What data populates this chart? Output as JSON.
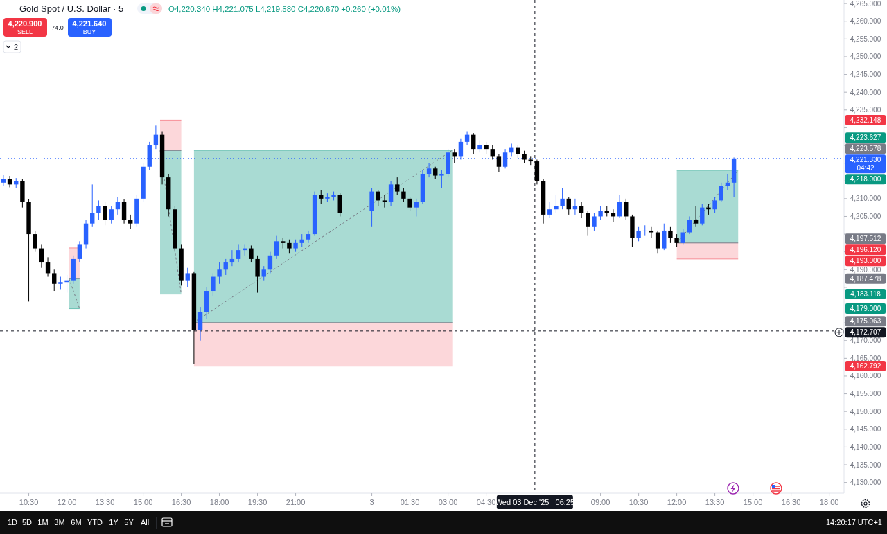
{
  "chart_data": {
    "type": "candlestick",
    "title": "Gold Spot / U.S. Dollar · 5",
    "subtitle": "O4,220.340 H4,221.075 L4,219.580 C4,220.670 +0.260 (+0.01%)",
    "x": [
      "2025-12-02T09:30",
      "2025-12-02T09:45",
      "2025-12-02T10:00",
      "2025-12-02T10:15",
      "2025-12-02T10:30",
      "2025-12-02T10:45",
      "2025-12-02T11:00",
      "2025-12-02T11:15",
      "2025-12-02T11:30",
      "2025-12-02T11:45",
      "2025-12-02T12:00",
      "2025-12-02T12:15",
      "2025-12-02T12:30",
      "2025-12-02T12:45",
      "2025-12-02T13:00",
      "2025-12-02T13:15",
      "2025-12-02T13:30",
      "2025-12-02T13:45",
      "2025-12-02T14:00",
      "2025-12-02T14:15",
      "2025-12-02T14:30",
      "2025-12-02T14:45",
      "2025-12-02T15:00",
      "2025-12-02T15:15",
      "2025-12-02T15:30",
      "2025-12-02T15:45",
      "2025-12-02T16:00",
      "2025-12-02T16:15",
      "2025-12-02T16:30",
      "2025-12-02T16:45",
      "2025-12-02T17:00",
      "2025-12-02T17:15",
      "2025-12-02T17:30",
      "2025-12-02T17:45",
      "2025-12-02T18:00",
      "2025-12-02T18:15",
      "2025-12-02T18:30",
      "2025-12-02T18:45",
      "2025-12-02T19:00",
      "2025-12-02T19:15",
      "2025-12-02T19:30",
      "2025-12-02T19:45",
      "2025-12-02T20:00",
      "2025-12-02T20:15",
      "2025-12-02T20:30",
      "2025-12-02T20:45",
      "2025-12-02T21:00",
      "2025-12-02T21:15",
      "2025-12-02T21:30",
      "2025-12-02T21:45",
      "2025-12-02T22:00",
      "2025-12-02T22:15",
      "2025-12-02T22:30",
      "2025-12-02T22:45",
      "2025-12-03T00:00",
      "2025-12-03T00:15",
      "2025-12-03T00:30",
      "2025-12-03T00:45",
      "2025-12-03T01:00",
      "2025-12-03T01:15",
      "2025-12-03T01:30",
      "2025-12-03T01:45",
      "2025-12-03T02:00",
      "2025-12-03T02:15",
      "2025-12-03T02:30",
      "2025-12-03T02:45",
      "2025-12-03T03:00",
      "2025-12-03T03:15",
      "2025-12-03T03:30",
      "2025-12-03T03:45",
      "2025-12-03T04:00",
      "2025-12-03T04:15",
      "2025-12-03T04:30",
      "2025-12-03T04:45",
      "2025-12-03T05:00",
      "2025-12-03T05:15",
      "2025-12-03T05:30",
      "2025-12-03T05:45",
      "2025-12-03T06:00",
      "2025-12-03T06:15",
      "2025-12-03T06:30",
      "2025-12-03T06:45",
      "2025-12-03T07:00",
      "2025-12-03T07:15",
      "2025-12-03T07:30",
      "2025-12-03T07:45",
      "2025-12-03T08:00",
      "2025-12-03T08:15",
      "2025-12-03T08:30",
      "2025-12-03T08:45",
      "2025-12-03T09:00",
      "2025-12-03T09:15",
      "2025-12-03T09:30",
      "2025-12-03T09:45",
      "2025-12-03T10:00",
      "2025-12-03T10:15",
      "2025-12-03T10:30",
      "2025-12-03T10:45",
      "2025-12-03T11:00",
      "2025-12-03T11:15",
      "2025-12-03T11:30",
      "2025-12-03T11:45",
      "2025-12-03T12:00",
      "2025-12-03T12:15",
      "2025-12-03T12:30",
      "2025-12-03T12:45",
      "2025-12-03T13:00",
      "2025-12-03T13:15",
      "2025-12-03T13:30",
      "2025-12-03T13:45",
      "2025-12-03T14:00",
      "2025-12-03T14:15"
    ],
    "ohlc": [
      [
        4214.5,
        4216.8,
        4213.6,
        4215.5
      ],
      [
        4215.5,
        4216.4,
        4213.2,
        4214
      ],
      [
        4214,
        4215.8,
        4212.9,
        4215
      ],
      [
        4215,
        4215.6,
        4207.5,
        4209
      ],
      [
        4209,
        4209.8,
        4181,
        4200
      ],
      [
        4200,
        4201,
        4195,
        4196
      ],
      [
        4196,
        4197,
        4190.5,
        4192
      ],
      [
        4192,
        4193.5,
        4188,
        4189
      ],
      [
        4189,
        4190,
        4184,
        4186
      ],
      [
        4186,
        4188,
        4184.5,
        4186.5
      ],
      [
        4186.5,
        4188.5,
        4183.5,
        4187
      ],
      [
        4187,
        4194,
        4186,
        4193
      ],
      [
        4193,
        4198,
        4192,
        4197
      ],
      [
        4197,
        4204,
        4196,
        4203
      ],
      [
        4203,
        4214,
        4202,
        4206
      ],
      [
        4206,
        4209.5,
        4204,
        4208
      ],
      [
        4208,
        4209,
        4202.5,
        4204
      ],
      [
        4204,
        4208,
        4203,
        4207
      ],
      [
        4207,
        4210.5,
        4205.5,
        4209
      ],
      [
        4209,
        4209.8,
        4203,
        4204
      ],
      [
        4204,
        4205.5,
        4201.5,
        4203
      ],
      [
        4203,
        4211,
        4202,
        4210
      ],
      [
        4210,
        4220,
        4209,
        4219
      ],
      [
        4219,
        4226,
        4218,
        4225
      ],
      [
        4225,
        4230.6,
        4224,
        4228
      ],
      [
        4228,
        4229,
        4214,
        4216
      ],
      [
        4216,
        4217,
        4205,
        4207
      ],
      [
        4207,
        4208,
        4195,
        4196
      ],
      [
        4196,
        4197,
        4185.5,
        4187
      ],
      [
        4187,
        4190.5,
        4185,
        4189
      ],
      [
        4189,
        4189.5,
        4163.5,
        4173
      ],
      [
        4173,
        4179.5,
        4170,
        4178
      ],
      [
        4178,
        4185,
        4176,
        4184
      ],
      [
        4184,
        4189,
        4182.5,
        4188
      ],
      [
        4188,
        4192,
        4186,
        4190
      ],
      [
        4190,
        4193,
        4188.5,
        4192
      ],
      [
        4192,
        4195.5,
        4191,
        4193
      ],
      [
        4193,
        4197,
        4192,
        4195.5
      ],
      [
        4195.5,
        4197,
        4194,
        4196
      ],
      [
        4196,
        4196.8,
        4192,
        4193
      ],
      [
        4193,
        4194,
        4183.5,
        4188
      ],
      [
        4188,
        4191,
        4187,
        4190
      ],
      [
        4190,
        4195,
        4189,
        4194
      ],
      [
        4194,
        4199.5,
        4193,
        4198
      ],
      [
        4198,
        4199,
        4196,
        4197.5
      ],
      [
        4197.5,
        4198.5,
        4194.5,
        4196
      ],
      [
        4196,
        4198.5,
        4195,
        4197.5
      ],
      [
        4197.5,
        4200,
        4196.5,
        4198.5
      ],
      [
        4198.5,
        4201,
        4197.5,
        4200
      ],
      [
        4200,
        4212,
        4199.5,
        4211
      ],
      [
        4211,
        4212.5,
        4208.5,
        4210
      ],
      [
        4210,
        4211.5,
        4209,
        4210.5
      ],
      [
        4210.5,
        4212,
        4209.5,
        4211
      ],
      [
        4211,
        4211.5,
        4205,
        4206
      ],
      [
        4206.5,
        4213,
        4202,
        4212
      ],
      [
        4212,
        4212.5,
        4208,
        4209.5
      ],
      [
        4209.5,
        4211,
        4207.5,
        4209
      ],
      [
        4209,
        4215,
        4208,
        4214
      ],
      [
        4214,
        4216,
        4211,
        4212
      ],
      [
        4212,
        4213,
        4209,
        4210
      ],
      [
        4210,
        4210.5,
        4206.5,
        4207.5
      ],
      [
        4207.5,
        4210,
        4205,
        4209
      ],
      [
        4209,
        4218,
        4208.5,
        4217
      ],
      [
        4217,
        4220,
        4216,
        4218.5
      ],
      [
        4218.5,
        4219,
        4215.5,
        4216.5
      ],
      [
        4216.5,
        4218,
        4213,
        4217
      ],
      [
        4217,
        4224,
        4216,
        4223
      ],
      [
        4223,
        4224,
        4220,
        4222
      ],
      [
        4222,
        4227,
        4221,
        4226
      ],
      [
        4226,
        4229,
        4225,
        4228
      ],
      [
        4228,
        4228.5,
        4222.5,
        4224
      ],
      [
        4224,
        4226.5,
        4223,
        4225
      ],
      [
        4225,
        4226,
        4222.5,
        4224
      ],
      [
        4224,
        4225,
        4221,
        4222
      ],
      [
        4222,
        4222.5,
        4217.5,
        4219
      ],
      [
        4219,
        4224,
        4218.5,
        4223
      ],
      [
        4223,
        4225.5,
        4222,
        4224.5
      ],
      [
        4224.5,
        4225,
        4221.5,
        4222.5
      ],
      [
        4222.5,
        4223.5,
        4220,
        4221
      ],
      [
        4221,
        4222,
        4219.5,
        4220.5
      ],
      [
        4220.5,
        4221,
        4214,
        4215
      ],
      [
        4215,
        4215.5,
        4203,
        4205.5
      ],
      [
        4205.5,
        4209,
        4204.5,
        4207
      ],
      [
        4207,
        4211,
        4206,
        4208
      ],
      [
        4208,
        4213,
        4207,
        4210
      ],
      [
        4210,
        4210.5,
        4205.5,
        4207
      ],
      [
        4207,
        4210,
        4205.5,
        4208
      ],
      [
        4208,
        4209,
        4204.5,
        4206
      ],
      [
        4206,
        4206.5,
        4199.5,
        4202
      ],
      [
        4202,
        4206,
        4201,
        4205
      ],
      [
        4205,
        4208,
        4204,
        4206.5
      ],
      [
        4206.5,
        4208,
        4205,
        4206
      ],
      [
        4206,
        4207,
        4203.5,
        4205
      ],
      [
        4205,
        4211,
        4204.5,
        4209
      ],
      [
        4209,
        4210,
        4204,
        4205
      ],
      [
        4205,
        4205.5,
        4196.5,
        4199
      ],
      [
        4199,
        4202,
        4198,
        4201
      ],
      [
        4201,
        4202.5,
        4199.5,
        4201
      ],
      [
        4201,
        4202,
        4199,
        4200.5
      ],
      [
        4200.5,
        4201,
        4194.5,
        4196
      ],
      [
        4196,
        4203,
        4195.5,
        4201
      ],
      [
        4201,
        4202,
        4197.5,
        4199
      ],
      [
        4199,
        4200,
        4196.5,
        4197.5
      ],
      [
        4197.5,
        4201.5,
        4197,
        4200.5
      ],
      [
        4200.5,
        4205,
        4200,
        4204
      ],
      [
        4204,
        4208,
        4202,
        4203
      ],
      [
        4203,
        4208.5,
        4202.5,
        4207.5
      ],
      [
        4207.5,
        4208.5,
        4205.5,
        4207
      ],
      [
        4207,
        4210.5,
        4206,
        4209.5
      ],
      [
        4209.5,
        4214.5,
        4209,
        4213.5
      ],
      [
        4213.5,
        4217,
        4212.5,
        4214.5
      ],
      [
        4214.5,
        4221.6,
        4210.5,
        4221.33
      ]
    ],
    "xlim": [
      "2025-12-02T09:22",
      "2025-12-03T18:35"
    ],
    "xticks": [
      {
        "value": "2025-12-02T10:30",
        "label": "10:30"
      },
      {
        "value": "2025-12-02T12:00",
        "label": "12:00"
      },
      {
        "value": "2025-12-02T13:30",
        "label": "13:30"
      },
      {
        "value": "2025-12-02T15:00",
        "label": "15:00"
      },
      {
        "value": "2025-12-02T16:30",
        "label": "16:30"
      },
      {
        "value": "2025-12-02T18:00",
        "label": "18:00"
      },
      {
        "value": "2025-12-02T19:30",
        "label": "19:30"
      },
      {
        "value": "2025-12-02T21:00",
        "label": "21:00"
      },
      {
        "value": "2025-12-03T00:00",
        "label": "3"
      },
      {
        "value": "2025-12-03T01:30",
        "label": "01:30"
      },
      {
        "value": "2025-12-03T03:00",
        "label": "03:00"
      },
      {
        "value": "2025-12-03T04:30",
        "label": "04:30"
      },
      {
        "value": "2025-12-03T09:00",
        "label": "09:00"
      },
      {
        "value": "2025-12-03T10:30",
        "label": "10:30"
      },
      {
        "value": "2025-12-03T12:00",
        "label": "12:00"
      },
      {
        "value": "2025-12-03T13:30",
        "label": "13:30"
      },
      {
        "value": "2025-12-03T15:00",
        "label": "15:00"
      },
      {
        "value": "2025-12-03T16:30",
        "label": "16:30"
      },
      {
        "value": "2025-12-03T18:00",
        "label": "18:00"
      }
    ],
    "ylim": [
      4127,
      4266
    ],
    "yticks": [
      {
        "value": 4130,
        "label": "4,130.000"
      },
      {
        "value": 4135,
        "label": "4,135.000"
      },
      {
        "value": 4140,
        "label": "4,140.000"
      },
      {
        "value": 4145,
        "label": "4,145.000"
      },
      {
        "value": 4150,
        "label": "4,150.000"
      },
      {
        "value": 4155,
        "label": "4,155.000"
      },
      {
        "value": 4160,
        "label": "4,160.000"
      },
      {
        "value": 4165,
        "label": "4,165.000"
      },
      {
        "value": 4170,
        "label": "4,170.000"
      },
      {
        "value": 4175,
        "label": null
      },
      {
        "value": 4180,
        "label": null
      },
      {
        "value": 4185,
        "label": null
      },
      {
        "value": 4190,
        "label": "4,190.000"
      },
      {
        "value": 4195,
        "label": null
      },
      {
        "value": 4200,
        "label": null
      },
      {
        "value": 4205,
        "label": "4,205.000"
      },
      {
        "value": 4210,
        "label": "4,210.000"
      },
      {
        "value": 4215,
        "label": null
      },
      {
        "value": 4220,
        "label": null
      },
      {
        "value": 4225,
        "label": null
      },
      {
        "value": 4230,
        "label": null
      },
      {
        "value": 4235,
        "label": "4,235.000"
      },
      {
        "value": 4240,
        "label": "4,240.000"
      },
      {
        "value": 4245,
        "label": "4,245.000"
      },
      {
        "value": 4250,
        "label": "4,250.000"
      },
      {
        "value": 4255,
        "label": "4,255.000"
      },
      {
        "value": 4260,
        "label": "4,260.000"
      },
      {
        "value": 4265,
        "label": "4,265.000"
      }
    ],
    "ref_lines": [
      {
        "axis": "y",
        "value": 4221.33,
        "label": "4,221.330\n04:42",
        "color": "#2962ff",
        "line_style": "dotted"
      },
      {
        "axis": "y",
        "value": 4172.707,
        "label": "4,172.707",
        "color": "#131722",
        "line_style": "dashed"
      },
      {
        "axis": "x",
        "value": "2025-12-03T06:25",
        "label": "Wed 03 Dec '25   06:25",
        "color": "#131722",
        "line_style": "dashed"
      }
    ],
    "annotations": [
      "4,220.900",
      "SELL",
      "74.0",
      "4,221.640",
      "BUY",
      "2",
      "1D",
      "5D",
      "1M",
      "3M",
      "6M",
      "YTD",
      "1Y",
      "5Y",
      "All",
      "14:20:17 UTC+1",
      "4,196.120",
      "4,187.478",
      "4,179.000",
      "4,232.148",
      "4,223.578",
      "4,183.118",
      "4,162.792",
      "4,175.063",
      "4,223.627",
      "4,193.000",
      "4,197.512",
      "4,218.000"
    ]
  }
}
